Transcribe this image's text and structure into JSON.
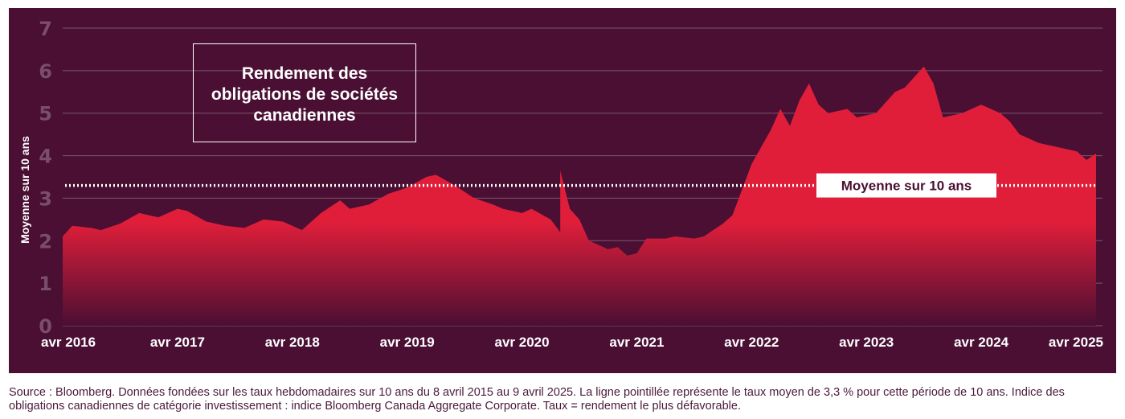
{
  "chart_data": {
    "type": "area",
    "title_lines": [
      "Rendement des",
      "obligations de sociétés",
      "canadiennes"
    ],
    "ylabel": "Moyenne sur 10 ans",
    "ylim": [
      0,
      7
    ],
    "yticks": [
      "0",
      "1",
      "2",
      "3",
      "4",
      "5",
      "6",
      "7"
    ],
    "xlim": [
      "2016-04",
      "2025-04"
    ],
    "xticks": [
      "avr 2016",
      "avr 2017",
      "avr 2018",
      "avr 2019",
      "avr 2020",
      "avr 2021",
      "avr 2022",
      "avr 2023",
      "avr 2024",
      "avr 2025"
    ],
    "grid": true,
    "average": {
      "label": "Moyenne sur 10 ans",
      "value": 3.3
    },
    "series": [
      {
        "values": [
          [
            "2016-04",
            2.1
          ],
          [
            "2016-05",
            2.35
          ],
          [
            "2016-07",
            2.3
          ],
          [
            "2016-08",
            2.25
          ],
          [
            "2016-10",
            2.4
          ],
          [
            "2016-12",
            2.65
          ],
          [
            "2017-02",
            2.55
          ],
          [
            "2017-04",
            2.75
          ],
          [
            "2017-05",
            2.7
          ],
          [
            "2017-07",
            2.45
          ],
          [
            "2017-09",
            2.35
          ],
          [
            "2017-11",
            2.3
          ],
          [
            "2018-01",
            2.5
          ],
          [
            "2018-03",
            2.45
          ],
          [
            "2018-05",
            2.25
          ],
          [
            "2018-07",
            2.65
          ],
          [
            "2018-09",
            2.95
          ],
          [
            "2018-10",
            2.75
          ],
          [
            "2018-12",
            2.85
          ],
          [
            "2019-02",
            3.1
          ],
          [
            "2019-04",
            3.25
          ],
          [
            "2019-06",
            3.5
          ],
          [
            "2019-07",
            3.55
          ],
          [
            "2019-09",
            3.3
          ],
          [
            "2019-11",
            3.0
          ],
          [
            "2020-01",
            2.85
          ],
          [
            "2020-02",
            2.75
          ],
          [
            "2020-04",
            2.65
          ],
          [
            "2020-05",
            2.75
          ],
          [
            "2020-07",
            2.5
          ],
          [
            "2020-08",
            2.2
          ],
          [
            "2020-08",
            3.65
          ],
          [
            "2020-09",
            2.75
          ],
          [
            "2020-10",
            2.5
          ],
          [
            "2020-11",
            2.0
          ],
          [
            "2021-01",
            1.8
          ],
          [
            "2021-02",
            1.85
          ],
          [
            "2021-03",
            1.65
          ],
          [
            "2021-04",
            1.7
          ],
          [
            "2021-05",
            2.05
          ],
          [
            "2021-07",
            2.05
          ],
          [
            "2021-08",
            2.1
          ],
          [
            "2021-10",
            2.05
          ],
          [
            "2021-11",
            2.1
          ],
          [
            "2022-01",
            2.4
          ],
          [
            "2022-02",
            2.6
          ],
          [
            "2022-03",
            3.2
          ],
          [
            "2022-04",
            3.8
          ],
          [
            "2022-06",
            4.6
          ],
          [
            "2022-07",
            5.1
          ],
          [
            "2022-08",
            4.7
          ],
          [
            "2022-09",
            5.3
          ],
          [
            "2022-10",
            5.7
          ],
          [
            "2022-11",
            5.2
          ],
          [
            "2022-12",
            5.0
          ],
          [
            "2023-02",
            5.1
          ],
          [
            "2023-03",
            4.9
          ],
          [
            "2023-05",
            5.0
          ],
          [
            "2023-07",
            5.5
          ],
          [
            "2023-08",
            5.6
          ],
          [
            "2023-10",
            6.1
          ],
          [
            "2023-11",
            5.7
          ],
          [
            "2023-12",
            4.9
          ],
          [
            "2024-02",
            5.0
          ],
          [
            "2024-04",
            5.2
          ],
          [
            "2024-06",
            5.0
          ],
          [
            "2024-07",
            4.8
          ],
          [
            "2024-08",
            4.5
          ],
          [
            "2024-10",
            4.3
          ],
          [
            "2024-12",
            4.2
          ],
          [
            "2025-02",
            4.1
          ],
          [
            "2025-03",
            3.9
          ],
          [
            "2025-04",
            4.05
          ]
        ]
      }
    ]
  },
  "source_note": "Source : Bloomberg. Données fondées sur les taux hebdomadaires sur 10 ans du 8 avril 2015 au 9 avril 2025. La ligne pointillée représente le taux moyen de 3,3 % pour cette période de 10 ans. Indice des obligations canadiennes de catégorie investissement : indice Bloomberg Canada Aggregate Corporate. Taux = rendement le plus défavorable.",
  "colors": {
    "background": "#4a0f33",
    "area_top": "#e01e3a",
    "area_bottom": "#4a0f33",
    "grid": "#8a6a7e",
    "average_line": "#ffffff"
  }
}
